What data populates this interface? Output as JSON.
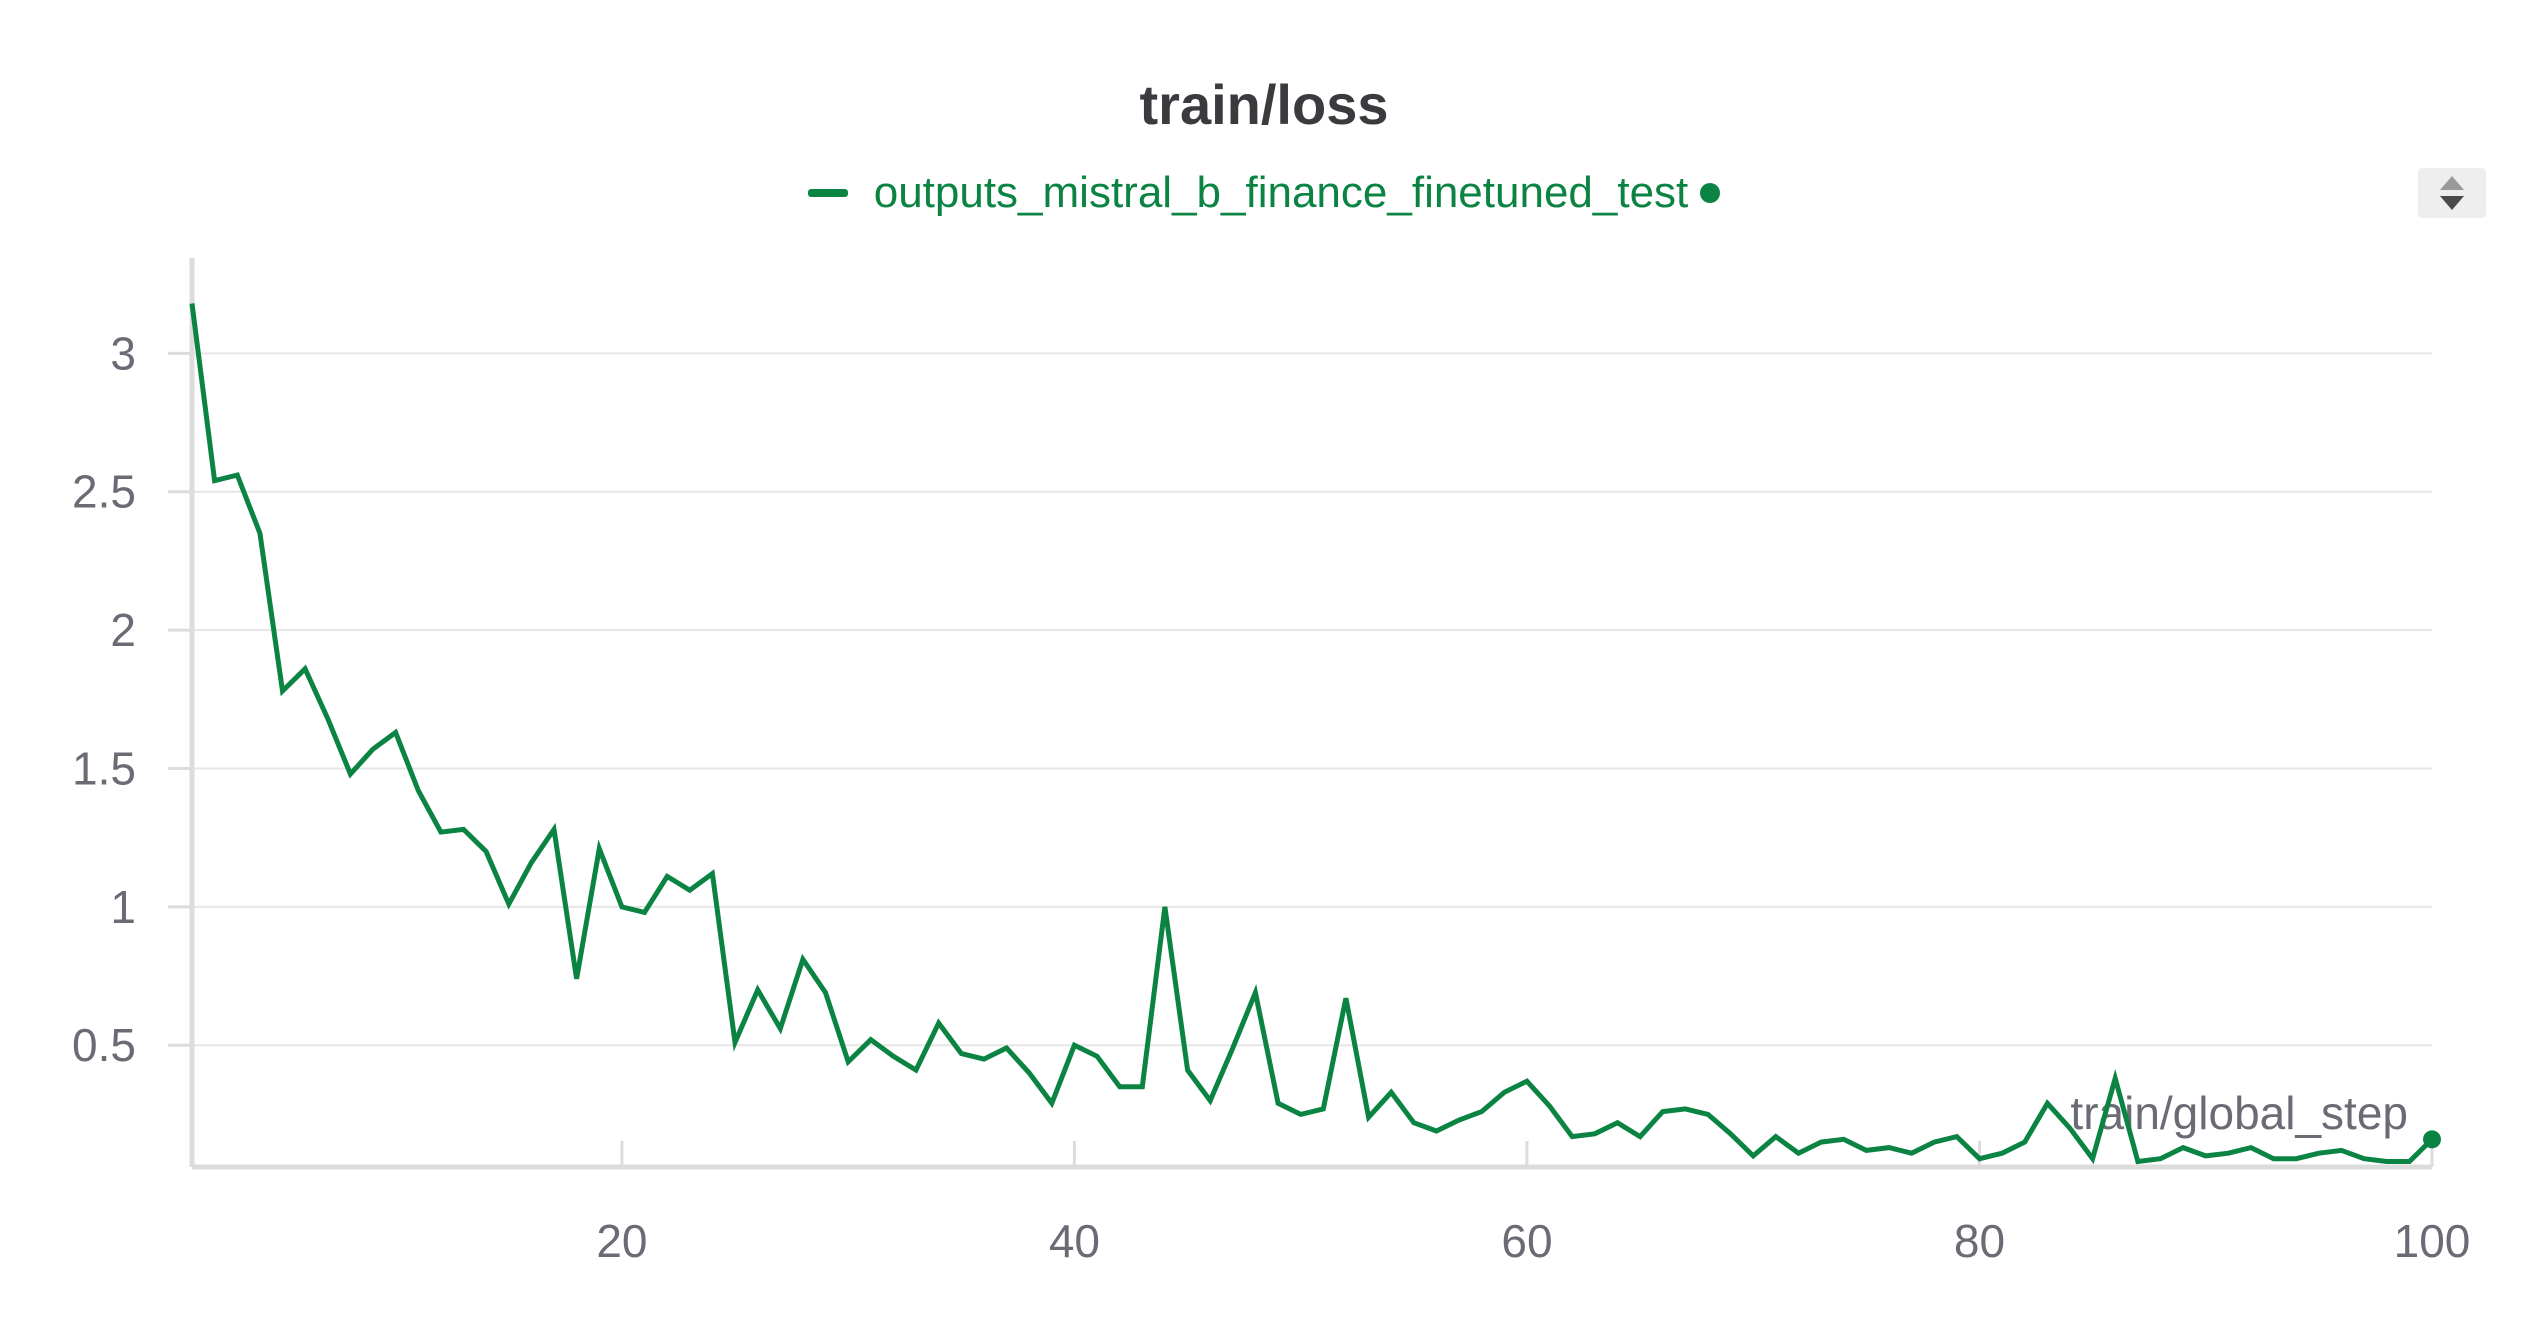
{
  "colors": {
    "series": "#0b8443",
    "grid": "#e6e6e6",
    "axis": "#dcdcdc",
    "text": "#6b6b76",
    "title": "#3a3a3f"
  },
  "controls": {
    "legend_scroll": "up-down-scroll-icon"
  },
  "chart_data": {
    "type": "line",
    "title": "train/loss",
    "xlabel": "train/global_step",
    "ylabel": "",
    "legend_position": "top-center",
    "grid": true,
    "xlim": [
      1,
      100
    ],
    "ylim": [
      0.06,
      3.2
    ],
    "xticks": [
      20,
      40,
      60,
      80,
      100
    ],
    "yticks": [
      0.5,
      1,
      1.5,
      2,
      2.5,
      3
    ],
    "ytick_labels": [
      "0.5",
      "1",
      "1.5",
      "2",
      "2.5",
      "3"
    ],
    "xtick_labels": [
      "20",
      "40",
      "60",
      "80",
      "100"
    ],
    "series": [
      {
        "name": "outputs_mistral_b_finance_finetuned_test",
        "color": "#0b8443",
        "x": [
          1,
          2,
          3,
          4,
          5,
          6,
          7,
          8,
          9,
          10,
          11,
          12,
          13,
          14,
          15,
          16,
          17,
          18,
          19,
          20,
          21,
          22,
          23,
          24,
          25,
          26,
          27,
          28,
          29,
          30,
          31,
          32,
          33,
          34,
          35,
          36,
          37,
          38,
          39,
          40,
          41,
          42,
          43,
          44,
          45,
          46,
          47,
          48,
          49,
          50,
          51,
          52,
          53,
          54,
          55,
          56,
          57,
          58,
          59,
          60,
          61,
          62,
          63,
          64,
          65,
          66,
          67,
          68,
          69,
          70,
          71,
          72,
          73,
          74,
          75,
          76,
          77,
          78,
          79,
          80,
          81,
          82,
          83,
          84,
          85,
          86,
          87,
          88,
          89,
          90,
          91,
          92,
          93,
          94,
          95,
          96,
          97,
          98,
          99,
          100
        ],
        "y": [
          3.18,
          2.54,
          2.56,
          2.35,
          1.78,
          1.86,
          1.68,
          1.48,
          1.57,
          1.63,
          1.42,
          1.27,
          1.28,
          1.2,
          1.01,
          1.16,
          1.28,
          0.74,
          1.21,
          1.0,
          0.98,
          1.11,
          1.06,
          1.12,
          0.51,
          0.7,
          0.56,
          0.81,
          0.69,
          0.44,
          0.52,
          0.46,
          0.41,
          0.58,
          0.47,
          0.45,
          0.49,
          0.4,
          0.29,
          0.5,
          0.46,
          0.35,
          0.35,
          1.0,
          0.41,
          0.3,
          0.49,
          0.69,
          0.29,
          0.25,
          0.27,
          0.67,
          0.24,
          0.33,
          0.22,
          0.19,
          0.23,
          0.26,
          0.33,
          0.37,
          0.28,
          0.17,
          0.18,
          0.22,
          0.17,
          0.26,
          0.27,
          0.25,
          0.18,
          0.1,
          0.17,
          0.11,
          0.15,
          0.16,
          0.12,
          0.13,
          0.11,
          0.15,
          0.17,
          0.09,
          0.11,
          0.15,
          0.29,
          0.2,
          0.09,
          0.38,
          0.08,
          0.09,
          0.13,
          0.1,
          0.11,
          0.13,
          0.09,
          0.09,
          0.11,
          0.12,
          0.09,
          0.08,
          0.08,
          0.16
        ]
      }
    ]
  }
}
